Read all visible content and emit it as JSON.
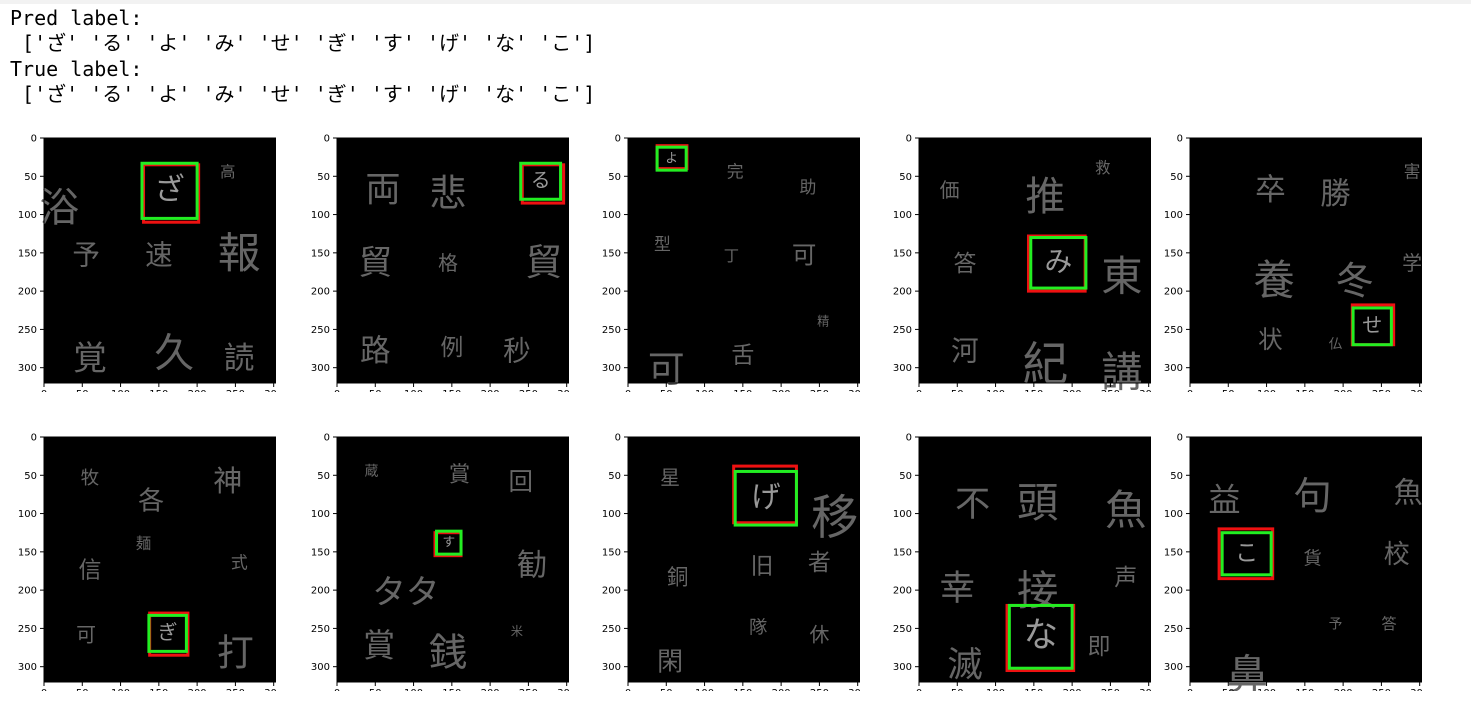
{
  "output": {
    "pred_title": "Pred label:",
    "pred_values": " ['ざ' 'る' 'よ' 'み' 'せ' 'ぎ' 'す' 'げ' 'な' 'こ']",
    "true_title": "True label:",
    "true_values": " ['ざ' 'る' 'よ' 'み' 'せ' 'ぎ' 'す' 'げ' 'な' 'こ']"
  },
  "axes": {
    "ticks": [
      0,
      50,
      100,
      150,
      200,
      250,
      300
    ],
    "range": [
      0,
      320
    ]
  },
  "colors": {
    "pred_box": "#22ee22",
    "true_box": "#ee1111",
    "background": "#000000",
    "glyph": "#666666"
  },
  "panels": [
    {
      "true_box": [
        130,
        35,
        202,
        110
      ],
      "pred_box": [
        128,
        33,
        200,
        105
      ],
      "target": "ざ",
      "glyphs": [
        [
          "浴",
          20,
          95,
          52
        ],
        [
          "高",
          240,
          45,
          20
        ],
        [
          "予",
          55,
          155,
          36
        ],
        [
          "速",
          150,
          155,
          36
        ],
        [
          "報",
          255,
          155,
          56
        ],
        [
          "覚",
          60,
          290,
          44
        ],
        [
          "久",
          170,
          285,
          52
        ],
        [
          "読",
          255,
          290,
          40
        ]
      ]
    },
    {
      "true_box": [
        242,
        35,
        296,
        85
      ],
      "pred_box": [
        240,
        33,
        292,
        80
      ],
      "target": "る",
      "glyphs": [
        [
          "両",
          60,
          70,
          46
        ],
        [
          "悲",
          145,
          75,
          48
        ],
        [
          "貿",
          50,
          165,
          44
        ],
        [
          "格",
          145,
          165,
          26
        ],
        [
          "貿",
          270,
          165,
          48
        ],
        [
          "路",
          50,
          280,
          40
        ],
        [
          "例",
          150,
          275,
          30
        ],
        [
          "秒",
          235,
          280,
          36
        ]
      ]
    },
    {
      "true_box": [
        38,
        10,
        77,
        40
      ],
      "pred_box": [
        38,
        12,
        76,
        42
      ],
      "target": "よ",
      "glyphs": [
        [
          "完",
          140,
          45,
          22
        ],
        [
          "助",
          235,
          65,
          22
        ],
        [
          "型",
          45,
          140,
          22
        ],
        [
          "丁",
          135,
          155,
          20
        ],
        [
          "可",
          230,
          155,
          32
        ],
        [
          "可",
          50,
          305,
          48
        ],
        [
          "舌",
          150,
          285,
          30
        ],
        [
          "精",
          255,
          240,
          16
        ]
      ]
    },
    {
      "true_box": [
        143,
        128,
        217,
        200
      ],
      "pred_box": [
        146,
        130,
        218,
        196
      ],
      "target": "み",
      "glyphs": [
        [
          "価",
          40,
          70,
          26
        ],
        [
          "推",
          165,
          80,
          52
        ],
        [
          "救",
          240,
          40,
          20
        ],
        [
          "答",
          60,
          165,
          30
        ],
        [
          "東",
          265,
          185,
          54
        ],
        [
          "河",
          60,
          280,
          36
        ],
        [
          "紀",
          165,
          300,
          60
        ],
        [
          "講",
          265,
          310,
          54
        ]
      ]
    },
    {
      "true_box": [
        212,
        218,
        266,
        270
      ],
      "pred_box": [
        213,
        222,
        263,
        270
      ],
      "target": "せ",
      "glyphs": [
        [
          "卒",
          105,
          70,
          40
        ],
        [
          "勝",
          190,
          75,
          40
        ],
        [
          "害",
          290,
          45,
          22
        ],
        [
          "養",
          110,
          190,
          54
        ],
        [
          "冬",
          215,
          190,
          50
        ],
        [
          "学",
          290,
          165,
          26
        ],
        [
          "状",
          105,
          265,
          32
        ],
        [
          "仏",
          190,
          270,
          18
        ]
      ]
    },
    {
      "true_box": [
        138,
        230,
        188,
        285
      ],
      "pred_box": [
        137,
        233,
        186,
        280
      ],
      "target": "ぎ",
      "glyphs": [
        [
          "牧",
          60,
          55,
          24
        ],
        [
          "各",
          140,
          85,
          34
        ],
        [
          "神",
          240,
          60,
          38
        ],
        [
          "麺",
          130,
          140,
          20
        ],
        [
          "信",
          60,
          175,
          30
        ],
        [
          "式",
          255,
          165,
          22
        ],
        [
          "可",
          55,
          260,
          26
        ],
        [
          "打",
          250,
          285,
          48
        ]
      ]
    },
    {
      "true_box": [
        128,
        125,
        162,
        155
      ],
      "pred_box": [
        130,
        123,
        162,
        153
      ],
      "target": "す",
      "glyphs": [
        [
          "蔵",
          45,
          45,
          18
        ],
        [
          "賞",
          160,
          50,
          28
        ],
        [
          "回",
          240,
          60,
          32
        ],
        [
          "タタ",
          90,
          205,
          44
        ],
        [
          "勧",
          255,
          170,
          40
        ],
        [
          "賞",
          55,
          275,
          42
        ],
        [
          "銭",
          145,
          285,
          50
        ],
        [
          "米",
          235,
          255,
          16
        ]
      ]
    },
    {
      "true_box": [
        138,
        38,
        220,
        112
      ],
      "pred_box": [
        140,
        45,
        220,
        115
      ],
      "target": "げ",
      "glyphs": [
        [
          "星",
          55,
          55,
          26
        ],
        [
          "移",
          270,
          110,
          62
        ],
        [
          "銅",
          65,
          185,
          28
        ],
        [
          "旧",
          175,
          170,
          30
        ],
        [
          "者",
          250,
          165,
          30
        ],
        [
          "閑",
          55,
          295,
          34
        ],
        [
          "隊",
          170,
          250,
          24
        ],
        [
          "休",
          250,
          260,
          26
        ]
      ]
    },
    {
      "true_box": [
        115,
        220,
        202,
        305
      ],
      "pred_box": [
        118,
        220,
        200,
        302
      ],
      "target": "な",
      "glyphs": [
        [
          "不",
          70,
          90,
          46
        ],
        [
          "頭",
          155,
          90,
          54
        ],
        [
          "魚",
          270,
          100,
          54
        ],
        [
          "幸",
          50,
          200,
          46
        ],
        [
          "接",
          155,
          205,
          54
        ],
        [
          "声",
          270,
          185,
          30
        ],
        [
          "滅",
          60,
          300,
          46
        ],
        [
          "即",
          235,
          275,
          30
        ]
      ]
    },
    {
      "true_box": [
        38,
        120,
        108,
        185
      ],
      "pred_box": [
        42,
        125,
        106,
        180
      ],
      "target": "こ",
      "glyphs": [
        [
          "益",
          45,
          85,
          42
        ],
        [
          "句",
          160,
          80,
          50
        ],
        [
          "魚",
          285,
          75,
          38
        ],
        [
          "貨",
          160,
          160,
          24
        ],
        [
          "校",
          270,
          155,
          34
        ],
        [
          "予",
          190,
          245,
          18
        ],
        [
          "答",
          260,
          245,
          20
        ],
        [
          "鼻",
          75,
          315,
          54
        ]
      ]
    }
  ]
}
